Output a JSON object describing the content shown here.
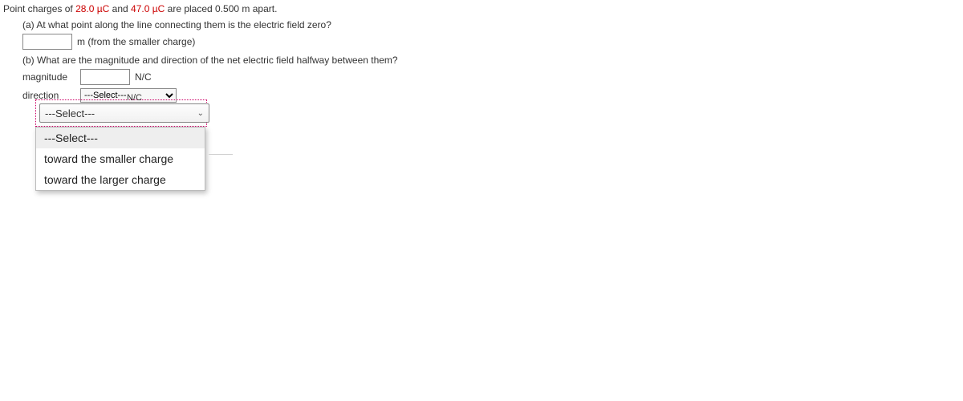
{
  "question": {
    "prefix": "Point charges of ",
    "q1": "28.0 µC",
    "mid1": " and ",
    "q2": "47.0 µC",
    "suffix": " are placed 0.500 m apart."
  },
  "partA": {
    "prompt": "(a) At what point along the line connecting them is the electric field zero?",
    "unit": "m (from the smaller charge)"
  },
  "partB": {
    "prompt": "(b) What are the magnitude and direction of the net electric field halfway between them?",
    "magLabel": "magnitude",
    "magUnit": "N/C",
    "dirLabel": "direction",
    "dirPlaceholder": "---Select---"
  },
  "popup": {
    "frag": "N/C",
    "closedText": "---Select---",
    "options": [
      "---Select---",
      "toward the smaller charge",
      "toward the larger charge"
    ]
  }
}
